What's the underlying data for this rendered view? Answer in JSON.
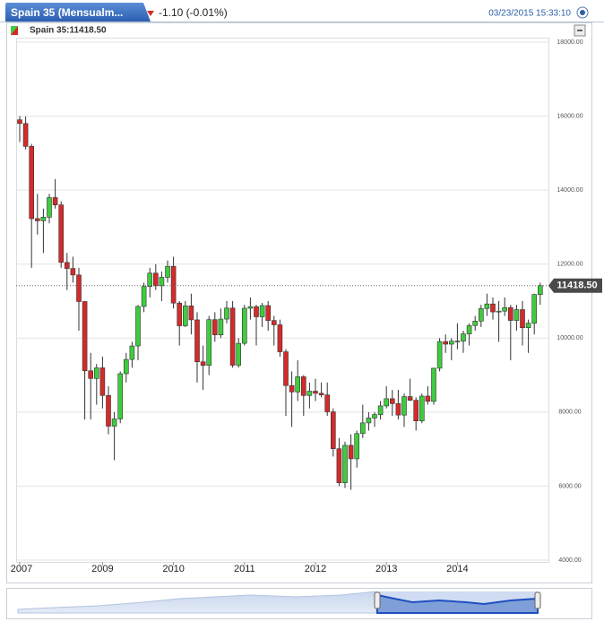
{
  "chart_data": {
    "type": "candlestick",
    "tab_title": "Spain 35 (Mensualm...",
    "change": "-1.10 (-0.01%)",
    "timestamp": "03/23/2015 15:33:10",
    "legend": "Spain 35:11418.50",
    "last_price": {
      "value": 11418.5,
      "label": "11418.50"
    },
    "up_color": "#3ecc3e",
    "down_color": "#d42a2a",
    "categories": [
      "2007",
      null,
      null,
      null,
      null,
      null,
      null,
      null,
      null,
      null,
      null,
      null,
      null,
      null,
      "2009",
      null,
      null,
      null,
      null,
      null,
      null,
      null,
      null,
      null,
      null,
      null,
      "2010",
      null,
      null,
      null,
      null,
      null,
      null,
      null,
      null,
      null,
      null,
      null,
      "2011",
      null,
      null,
      null,
      null,
      null,
      null,
      null,
      null,
      null,
      null,
      null,
      "2012",
      null,
      null,
      null,
      null,
      null,
      null,
      null,
      null,
      null,
      null,
      null,
      "2013",
      null,
      null,
      null,
      null,
      null,
      null,
      null,
      null,
      null,
      null,
      null,
      "2014",
      null,
      null,
      null,
      null,
      null,
      null,
      null,
      null,
      null,
      null,
      null,
      null,
      null,
      null
    ],
    "open": [
      15900,
      15800,
      15182,
      13229,
      13170,
      13269,
      13798,
      13600,
      12046,
      11882,
      11707,
      10988,
      9116,
      8910,
      9196,
      8450,
      7620,
      7815,
      9038,
      9424,
      9788,
      10855,
      11394,
      11756,
      11414,
      11644,
      11940,
      10947,
      10333,
      10871,
      10493,
      9359,
      9263,
      10499,
      10087,
      10514,
      10812,
      9267,
      9859,
      10806,
      10851,
      10576,
      10879,
      10476,
      10359,
      9630,
      8718,
      8546,
      8955,
      8449,
      8566,
      8509,
      8465,
      8008,
      7011,
      6090,
      7102,
      6738,
      7420,
      7708,
      7842,
      7934,
      8168,
      8362,
      8230,
      7920,
      8419,
      8320,
      7762,
      8433,
      8290,
      9186,
      9907,
      9837,
      9917,
      9920,
      10114,
      10340,
      10459,
      10798,
      10923,
      10708,
      10729,
      10826,
      10478,
      10770,
      10280,
      10403,
      11178
    ],
    "high": [
      16000,
      15990,
      15250,
      13900,
      13500,
      13900,
      14300,
      13700,
      12300,
      12200,
      11900,
      11000,
      9600,
      9300,
      9500,
      8700,
      8000,
      9100,
      9600,
      9900,
      10900,
      11500,
      11900,
      12000,
      11800,
      12100,
      12200,
      11000,
      11000,
      11200,
      10700,
      9800,
      10600,
      10700,
      10800,
      11000,
      11000,
      10000,
      10900,
      11100,
      10900,
      10950,
      11000,
      10600,
      10500,
      9700,
      9100,
      9400,
      9000,
      8800,
      8900,
      8800,
      8800,
      8100,
      7300,
      7200,
      7400,
      7500,
      8200,
      8000,
      8000,
      8300,
      8700,
      8600,
      8600,
      8500,
      8900,
      8400,
      8500,
      8700,
      9200,
      10000,
      10100,
      10000,
      10400,
      10200,
      10400,
      10600,
      10900,
      11200,
      11100,
      11000,
      11100,
      10900,
      10900,
      11000,
      10500,
      11200,
      11500
    ],
    "low": [
      15300,
      15100,
      11900,
      12800,
      12300,
      13100,
      13500,
      11900,
      11300,
      11500,
      10200,
      7800,
      7800,
      8200,
      8100,
      7400,
      6700,
      7700,
      8800,
      9200,
      9400,
      10700,
      11100,
      11300,
      11000,
      11500,
      10800,
      9800,
      10300,
      10100,
      8800,
      8600,
      9000,
      9900,
      10000,
      10400,
      9200,
      9200,
      9800,
      10500,
      9800,
      10300,
      10200,
      9800,
      9500,
      7900,
      7600,
      8300,
      7900,
      8100,
      8300,
      8400,
      7900,
      6800,
      6000,
      5950,
      5900,
      6500,
      7300,
      7500,
      7600,
      7800,
      8100,
      7900,
      7800,
      7600,
      8300,
      7500,
      7700,
      8200,
      8200,
      9100,
      9600,
      9400,
      9700,
      9600,
      9800,
      10200,
      10300,
      10600,
      10500,
      9900,
      10600,
      9400,
      10200,
      9800,
      9600,
      10100,
      10900
    ],
    "close": [
      15800,
      15182,
      13229,
      13170,
      13269,
      13798,
      13600,
      12046,
      11882,
      11707,
      10988,
      9116,
      8910,
      9196,
      8450,
      7620,
      7815,
      9038,
      9424,
      9788,
      10855,
      11394,
      11756,
      11414,
      11644,
      11940,
      10947,
      10333,
      10871,
      10493,
      9359,
      9263,
      10499,
      10087,
      10514,
      10812,
      9267,
      9859,
      10806,
      10851,
      10576,
      10879,
      10476,
      10359,
      9630,
      8718,
      8546,
      8955,
      8449,
      8566,
      8509,
      8465,
      8008,
      7011,
      6090,
      7102,
      6738,
      7420,
      7708,
      7842,
      7934,
      8168,
      8362,
      8230,
      7920,
      8419,
      8320,
      7762,
      8433,
      8290,
      9186,
      9907,
      9837,
      9917,
      9920,
      10114,
      10340,
      10459,
      10798,
      10923,
      10708,
      10729,
      10826,
      10478,
      10770,
      10280,
      10403,
      11178,
      11418.5
    ],
    "ylim": [
      4000,
      18000
    ],
    "yticks": [
      {
        "value": 4000,
        "label": "4000.00"
      },
      {
        "value": 6000,
        "label": "6000.00"
      },
      {
        "value": 8000,
        "label": "8000.00"
      },
      {
        "value": 10000,
        "label": "10000.00"
      },
      {
        "value": 12000,
        "label": "12000.00"
      },
      {
        "value": 14000,
        "label": "14000.00"
      },
      {
        "value": 16000,
        "label": "16000.00"
      },
      {
        "value": 18000,
        "label": "18000.00"
      }
    ],
    "grid": true
  }
}
